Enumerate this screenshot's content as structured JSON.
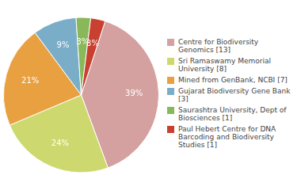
{
  "chart_data": {
    "type": "pie",
    "categories": [
      "Centre for Biodiversity\nGenomics [13]",
      "Sri Ramaswamy Memorial\nUniversity [8]",
      "Mined from GenBank, NCBI [7]",
      "Gujarat Biodiversity Gene Bank [3]",
      "Saurashtra University, Dept of\nBiosciences [1]",
      "Paul Hebert Centre for DNA\nBarcoding and Biodiversity\nStudies [1]"
    ],
    "values": [
      39,
      24,
      21,
      9,
      3,
      3
    ],
    "value_labels": [
      "39%",
      "24%",
      "21%",
      "9%",
      "3%",
      "3%"
    ],
    "colors": [
      "#d4a0a0",
      "#cdd96e",
      "#e8a040",
      "#7aaec8",
      "#88b858",
      "#c84030"
    ],
    "data_labels": true,
    "legend": "right"
  }
}
